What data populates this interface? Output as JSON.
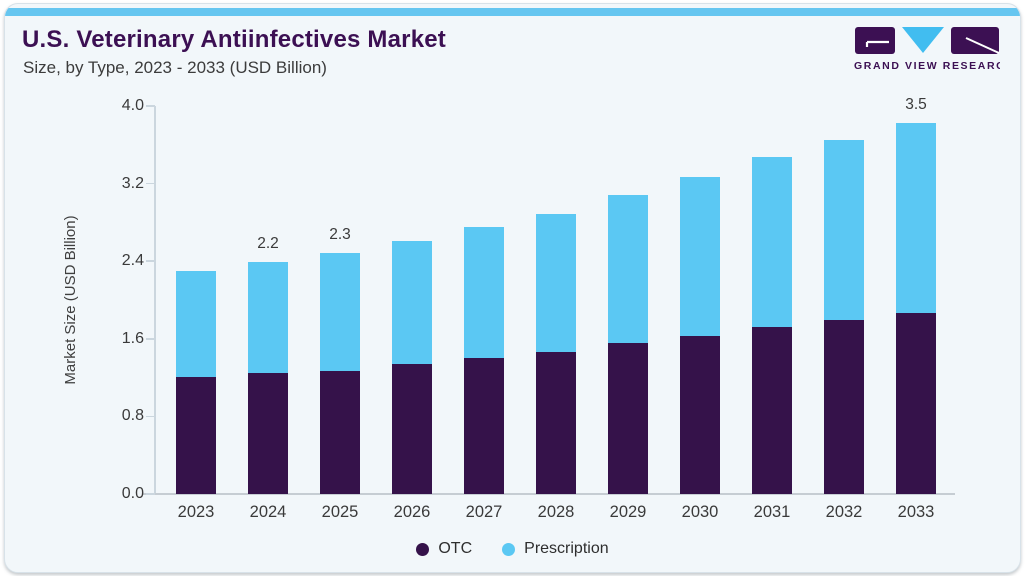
{
  "header": {
    "title": "U.S. Veterinary Antiinfectives Market",
    "subtitle": "Size, by Type, 2023 - 2033 (USD Billion)"
  },
  "logo": {
    "text": "GRAND VIEW RESEARCH",
    "mark_colors": {
      "blocks": "#3C1053",
      "triangle": "#41BDF0",
      "lines": "#FFFFFF"
    }
  },
  "chart_data": {
    "type": "bar",
    "stacked": true,
    "title": "U.S. Veterinary Antiinfectives Market Size, by Type, 2023 - 2033 (USD Billion)",
    "categories": [
      "2023",
      "2024",
      "2025",
      "2026",
      "2027",
      "2028",
      "2029",
      "2030",
      "2031",
      "2032",
      "2033"
    ],
    "series": [
      {
        "name": "OTC",
        "color": "#35124A",
        "values": [
          1.11,
          1.15,
          1.17,
          1.23,
          1.29,
          1.35,
          1.43,
          1.5,
          1.58,
          1.65,
          1.72
        ]
      },
      {
        "name": "Prescription",
        "color": "#5BC8F3",
        "values": [
          1.0,
          1.05,
          1.12,
          1.17,
          1.24,
          1.31,
          1.4,
          1.51,
          1.61,
          1.71,
          1.8
        ]
      }
    ],
    "totals": [
      2.11,
      2.2,
      2.29,
      2.4,
      2.53,
      2.66,
      2.83,
      3.01,
      3.19,
      3.36,
      3.52
    ],
    "bar_labels": [
      "",
      "2.2",
      "2.3",
      "",
      "",
      "",
      "",
      "",
      "",
      "",
      "3.5"
    ],
    "xlabel": "",
    "ylabel": "Market Size (USD Billion)",
    "yticks": [
      "0.0",
      "0.8",
      "1.6",
      "2.4",
      "3.2",
      "4.0"
    ],
    "ylim": [
      0,
      4.0
    ],
    "grid": false,
    "legend": [
      "OTC",
      "Prescription"
    ],
    "legend_position": "bottom"
  },
  "colors": {
    "card_background": "#F2F7FA",
    "card_border": "#D8E2E9",
    "top_accent": "#66C6F0",
    "title_text": "#3C1053",
    "body_text": "#3C3C3C",
    "axis_line": "#CBD6DE",
    "otc": "#35124A",
    "prescription": "#5BC8F3"
  }
}
